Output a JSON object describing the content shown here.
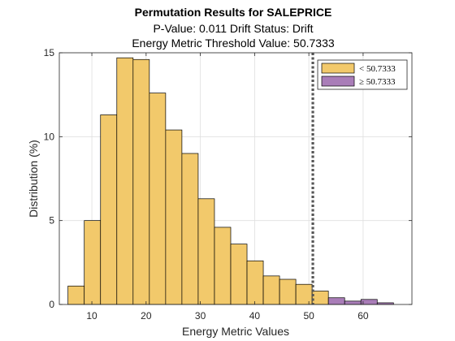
{
  "chart_data": {
    "type": "bar",
    "title": "Permutation Results for SALEPRICE",
    "subtitle_1": "P-Value: 0.011 Drift Status: Drift",
    "subtitle_2": "Energy Metric Threshold Value: 50.7333",
    "xlabel": "Energy Metric Values",
    "ylabel": "Distribution (%)",
    "xlim": [
      4,
      69
    ],
    "ylim": [
      0,
      15
    ],
    "xticks": [
      10,
      20,
      30,
      40,
      50,
      60
    ],
    "yticks": [
      0,
      5,
      10,
      15
    ],
    "grid": true,
    "legend_position": "top-right",
    "threshold": 50.7333,
    "bin_edges": [
      5.6,
      8.6,
      11.6,
      14.6,
      17.6,
      20.6,
      23.6,
      26.6,
      29.6,
      32.6,
      35.6,
      38.6,
      41.6,
      44.6,
      47.6,
      50.6,
      53.6,
      56.6,
      59.6,
      62.6,
      65.6
    ],
    "series": [
      {
        "name": "< 50.7333",
        "color": "#f2c96b",
        "values": [
          1.1,
          5.0,
          11.3,
          14.7,
          14.6,
          12.6,
          10.4,
          9.0,
          6.3,
          4.6,
          3.6,
          2.6,
          1.7,
          1.5,
          1.2,
          0.8,
          0,
          0,
          0,
          0
        ]
      },
      {
        "name": "≥ 50.7333",
        "color": "#a97db8",
        "values": [
          0,
          0,
          0,
          0,
          0,
          0,
          0,
          0,
          0,
          0,
          0,
          0,
          0,
          0,
          0,
          0,
          0.4,
          0.2,
          0.3,
          0.1
        ]
      }
    ]
  }
}
